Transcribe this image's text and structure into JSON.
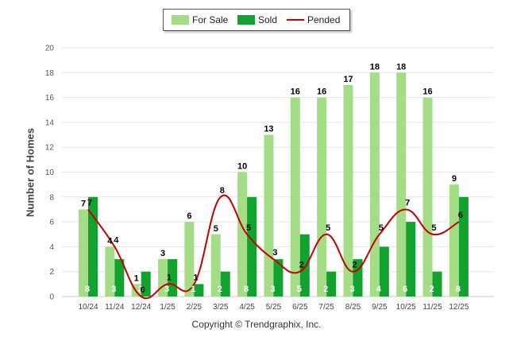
{
  "legend": {
    "for_sale": "For Sale",
    "sold": "Sold",
    "pended": "Pended"
  },
  "copyright": "Copyright © Trendgraphix, Inc.",
  "colors": {
    "for_sale": "#a5dc86",
    "sold": "#11a22f",
    "pended": "#c40000",
    "grid": "#e6e6e6"
  },
  "chart_data": {
    "type": "bar",
    "title": "",
    "xlabel": "",
    "ylabel": "Number of Homes",
    "ylim": [
      0,
      20
    ],
    "yticks": [
      0,
      2,
      4,
      6,
      8,
      10,
      12,
      14,
      16,
      18,
      20
    ],
    "grid": true,
    "legend_position": "top-center",
    "categories": [
      "10/24",
      "11/24",
      "12/24",
      "1/25",
      "2/25",
      "3/25",
      "4/25",
      "5/25",
      "6/25",
      "7/25",
      "8/25",
      "9/25",
      "10/25",
      "11/25",
      "12/25"
    ],
    "series": [
      {
        "name": "For Sale",
        "kind": "bar",
        "values": [
          7,
          4,
          1,
          3,
          6,
          5,
          10,
          13,
          16,
          16,
          17,
          18,
          18,
          16,
          9
        ]
      },
      {
        "name": "Sold",
        "kind": "bar",
        "values": [
          8,
          3,
          2,
          3,
          1,
          2,
          8,
          3,
          5,
          2,
          3,
          4,
          6,
          2,
          8
        ]
      },
      {
        "name": "Pended",
        "kind": "line",
        "values": [
          7,
          4,
          0,
          1,
          1,
          8,
          5,
          3,
          2,
          5,
          2,
          5,
          7,
          5,
          6
        ]
      }
    ]
  }
}
